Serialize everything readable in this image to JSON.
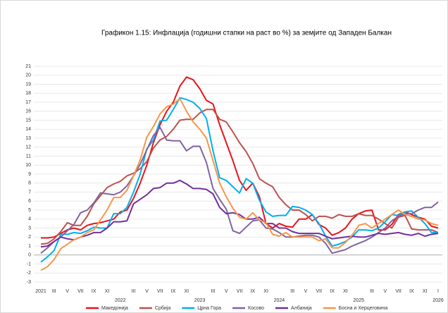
{
  "chart_data": {
    "type": "line",
    "title": "Графикон 1.15: Инфлација (годишни стапки на раст во %) за земјите од Западен Балкан",
    "categories": [
      "2021",
      null,
      "III",
      null,
      "V",
      null,
      "VII",
      null,
      "IX",
      null,
      "XI",
      null,
      null,
      null,
      "III",
      null,
      "V",
      null,
      "VII",
      null,
      "IX",
      null,
      "XI",
      null,
      null,
      null,
      "III",
      null,
      "V",
      null,
      "VII",
      null,
      "IX",
      null,
      "XI",
      null,
      null,
      null,
      "III",
      null,
      "V",
      null,
      "VII",
      null,
      "IX",
      null,
      "XI",
      null,
      null,
      null,
      "III",
      null,
      "V",
      null,
      "VII",
      null,
      "IX",
      null,
      "XI",
      null,
      "I"
    ],
    "years": [
      null,
      null,
      null,
      null,
      null,
      null,
      null,
      null,
      null,
      null,
      null,
      null,
      "2022",
      null,
      null,
      null,
      null,
      null,
      null,
      null,
      null,
      null,
      null,
      null,
      "2023",
      null,
      null,
      null,
      null,
      null,
      null,
      null,
      null,
      null,
      null,
      null,
      "2024",
      null,
      null,
      null,
      null,
      null,
      null,
      null,
      null,
      null,
      null,
      null,
      "2025",
      null,
      null,
      null,
      null,
      null,
      null,
      null,
      null,
      null,
      null,
      null,
      "2026"
    ],
    "series": [
      {
        "name": "Македонија",
        "color": "#e8141c",
        "values": [
          1.9,
          1.9,
          2.0,
          2.4,
          2.8,
          3.0,
          2.8,
          3.3,
          3.5,
          3.6,
          3.8,
          4.0,
          4.8,
          5.0,
          6.3,
          8.0,
          10.0,
          12.5,
          14.5,
          16.0,
          17.0,
          18.8,
          19.8,
          19.5,
          18.5,
          17.2,
          16.8,
          14.5,
          12.5,
          10.5,
          8.3,
          7.2,
          8.0,
          6.5,
          3.5,
          3.0,
          3.5,
          3.2,
          3.1,
          4.0,
          4.0,
          4.5,
          3.4,
          3.0,
          2.2,
          2.5,
          3.0,
          4.0,
          4.6,
          4.9,
          5.0,
          2.8,
          2.8,
          3.4,
          4.5,
          4.8,
          4.5,
          4.2,
          4.0,
          3.2,
          3.0
        ]
      },
      {
        "name": "Србија",
        "color": "#c0504d",
        "values": [
          1.2,
          1.3,
          1.8,
          2.6,
          3.6,
          3.3,
          3.3,
          4.3,
          5.7,
          6.6,
          7.5,
          7.9,
          8.2,
          8.8,
          9.1,
          9.6,
          10.4,
          11.9,
          12.8,
          13.2,
          14.0,
          15.0,
          15.1,
          15.1,
          15.8,
          16.2,
          16.2,
          15.1,
          14.8,
          13.7,
          12.5,
          11.5,
          10.2,
          8.5,
          8.0,
          7.6,
          6.4,
          5.6,
          5.0,
          5.0,
          4.5,
          3.8,
          4.3,
          4.3,
          4.1,
          4.5,
          4.3,
          4.3,
          4.6,
          4.4,
          4.4,
          4.0,
          3.5,
          3.0,
          4.2,
          4.4,
          2.9,
          2.8,
          2.8,
          2.8,
          2.5
        ]
      },
      {
        "name": "Црна Гора",
        "color": "#00b0f0",
        "values": [
          -0.8,
          -0.2,
          0.5,
          2.3,
          2.3,
          2.5,
          2.4,
          2.7,
          3.1,
          3.0,
          3.0,
          4.6,
          4.6,
          5.3,
          7.0,
          9.0,
          11.8,
          12.8,
          14.9,
          15.0,
          16.2,
          17.5,
          17.3,
          17.0,
          16.3,
          15.2,
          11.6,
          8.6,
          8.3,
          7.6,
          6.9,
          8.5,
          8.0,
          6.1,
          4.8,
          4.3,
          4.4,
          4.4,
          5.4,
          5.3,
          5.0,
          4.5,
          3.5,
          2.1,
          1.0,
          1.2,
          1.5,
          2.0,
          2.8,
          2.8,
          2.7,
          3.0,
          3.7,
          4.5,
          4.4,
          4.8,
          4.9,
          4.2,
          3.5,
          2.5,
          2.5
        ]
      },
      {
        "name": "Косово",
        "color": "#8064a2",
        "values": [
          0.2,
          0.8,
          1.5,
          2.0,
          2.7,
          3.4,
          4.7,
          5.0,
          5.8,
          6.9,
          6.8,
          6.7,
          7.0,
          7.7,
          8.8,
          10.1,
          11.7,
          13.3,
          14.2,
          12.8,
          12.7,
          12.7,
          11.6,
          12.1,
          12.1,
          10.3,
          7.4,
          6.2,
          5.1,
          2.7,
          2.4,
          3.1,
          3.8,
          3.9,
          3.0,
          2.9,
          2.5,
          2.0,
          2.0,
          2.1,
          2.2,
          2.2,
          2.0,
          1.3,
          0.2,
          0.4,
          0.6,
          1.0,
          1.3,
          1.6,
          2.0,
          2.5,
          3.0,
          3.8,
          4.3,
          4.6,
          4.6,
          5.0,
          5.3,
          5.3,
          5.9
        ]
      },
      {
        "name": "Албанија",
        "color": "#7030a0",
        "values": [
          0.9,
          1.0,
          1.5,
          2.0,
          1.8,
          1.7,
          2.0,
          2.2,
          2.5,
          2.5,
          3.0,
          3.7,
          3.7,
          3.8,
          5.7,
          6.2,
          6.7,
          7.4,
          7.5,
          8.0,
          8.0,
          8.3,
          7.9,
          7.4,
          7.4,
          7.3,
          6.8,
          5.3,
          4.6,
          4.7,
          4.5,
          4.0,
          4.0,
          4.2,
          3.5,
          3.5,
          3.0,
          3.0,
          2.6,
          2.4,
          2.4,
          2.4,
          2.4,
          2.1,
          1.8,
          1.9,
          2.0,
          2.1,
          2.0,
          2.0,
          2.2,
          2.4,
          2.3,
          2.4,
          2.5,
          2.3,
          2.2,
          2.4,
          2.1,
          2.3,
          2.4
        ]
      },
      {
        "name": "Босна и Херцеговина",
        "color": "#f79646",
        "values": [
          -1.7,
          -1.3,
          -0.5,
          0.7,
          1.2,
          1.7,
          2.0,
          2.5,
          2.8,
          3.9,
          5.0,
          6.4,
          6.4,
          7.2,
          8.8,
          10.6,
          13.1,
          14.3,
          15.7,
          16.5,
          16.8,
          17.4,
          16.0,
          14.8,
          14.0,
          13.0,
          10.5,
          8.0,
          6.5,
          5.2,
          4.2,
          4.0,
          4.7,
          3.9,
          3.6,
          2.3,
          2.1,
          2.5,
          2.0,
          2.0,
          2.0,
          2.0,
          1.6,
          1.8,
          0.8,
          0.8,
          1.4,
          2.2,
          3.3,
          3.5,
          3.0,
          3.5,
          4.0,
          4.5,
          5.0,
          4.5,
          4.3,
          4.0,
          3.9,
          3.5,
          3.3
        ]
      }
    ],
    "ylim": [
      -3,
      21
    ],
    "yticks": [
      -3,
      -2,
      -1,
      0,
      1,
      2,
      3,
      4,
      5,
      6,
      7,
      8,
      9,
      10,
      11,
      12,
      13,
      14,
      15,
      16,
      17,
      18,
      19,
      20,
      21
    ],
    "grid": true
  }
}
